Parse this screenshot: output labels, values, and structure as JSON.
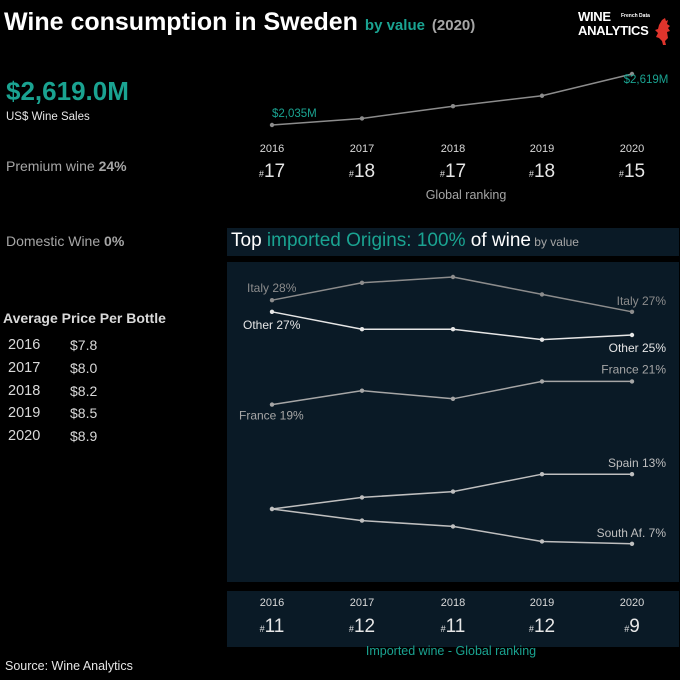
{
  "header": {
    "title": "Wine consumption in Sweden",
    "by_value": "by value",
    "year": "(2020)"
  },
  "logo": {
    "line1": "WINE",
    "line2": "ANALYTICS",
    "small": "French Data"
  },
  "kpi": {
    "value": "$2,619.0M",
    "label": "US$ Wine Sales"
  },
  "premium": {
    "label": "Premium wine",
    "value": "24%"
  },
  "domestic": {
    "label": "Domestic Wine",
    "value": "0%"
  },
  "avg_price": {
    "title": "Average Price Per Bottle",
    "rows": [
      {
        "year": "2016",
        "price": "$7.8"
      },
      {
        "year": "2017",
        "price": "$8.0"
      },
      {
        "year": "2018",
        "price": "$8.2"
      },
      {
        "year": "2019",
        "price": "$8.5"
      },
      {
        "year": "2020",
        "price": "$8.9"
      }
    ]
  },
  "origins_title": {
    "part1": "Top ",
    "part2": "imported Origins: 100%",
    "part3": " of wine",
    "part4": " by value"
  },
  "source": "Source: Wine Analytics",
  "colors": {
    "accent": "#1aa391",
    "panel": "#0a1a26",
    "line": "#8c8c8c"
  },
  "chart_data": [
    {
      "type": "line",
      "name": "sales",
      "x": [
        "2016",
        "2017",
        "2018",
        "2019",
        "2020"
      ],
      "values": [
        2035,
        2110,
        2250,
        2370,
        2619
      ],
      "start_label": "$2,035M",
      "end_label": "$2,619M",
      "rank_prefix": "#",
      "ranks": [
        "17",
        "18",
        "17",
        "18",
        "15"
      ],
      "rank_caption": "Global ranking"
    },
    {
      "type": "line",
      "name": "imported origins",
      "x": [
        "2016",
        "2017",
        "2018",
        "2019",
        "2020"
      ],
      "ylim": [
        5,
        30
      ],
      "series": [
        {
          "name": "Italy",
          "values": [
            28,
            29.5,
            30,
            28.5,
            27
          ],
          "start_label": "Italy 28%",
          "end_label": "Italy 27%"
        },
        {
          "name": "Other",
          "values": [
            27,
            25.5,
            25.5,
            24.6,
            25
          ],
          "start_label": "Other 27%",
          "end_label": "Other 25%"
        },
        {
          "name": "France",
          "values": [
            19,
            20.2,
            19.5,
            21,
            21
          ],
          "start_label": "France 19%",
          "end_label": "France 21%"
        },
        {
          "name": "Spain",
          "values": [
            10,
            11,
            11.5,
            13,
            13
          ],
          "start_label": "",
          "end_label": "Spain 13%"
        },
        {
          "name": "South Af.",
          "values": [
            10,
            9,
            8.5,
            7.2,
            7
          ],
          "start_label": "",
          "end_label": "South Af. 7%"
        }
      ],
      "rank_prefix": "#",
      "ranks": [
        "11",
        "12",
        "11",
        "12",
        "9"
      ],
      "rank_caption": "Imported wine - Global ranking"
    }
  ]
}
